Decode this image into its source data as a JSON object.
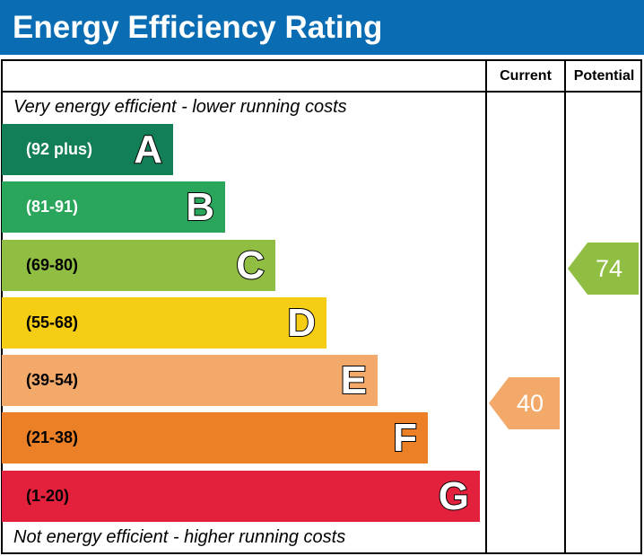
{
  "title": "Energy Efficiency Rating",
  "columns": {
    "current": "Current",
    "potential": "Potential"
  },
  "top_note": "Very energy efficient - lower running costs",
  "bottom_note": "Not energy efficient - higher running costs",
  "chart_data": {
    "type": "bar",
    "categories": [
      "A",
      "B",
      "C",
      "D",
      "E",
      "F",
      "G"
    ],
    "ranges": [
      "(92 plus)",
      "(81-91)",
      "(69-80)",
      "(55-68)",
      "(39-54)",
      "(21-38)",
      "(1-20)"
    ],
    "colors": [
      "#137f57",
      "#2aa65c",
      "#8fbe43",
      "#f5cd14",
      "#f2a96a",
      "#ec8026",
      "#e3213c"
    ],
    "range_text_colors": [
      "#ffffff",
      "#ffffff",
      "#000000",
      "#000000",
      "#000000",
      "#000000",
      "#000000"
    ],
    "current": {
      "value": 40,
      "band": "E",
      "color": "#f2a96a"
    },
    "potential": {
      "value": 74,
      "band": "C",
      "color": "#8fbe43"
    }
  }
}
